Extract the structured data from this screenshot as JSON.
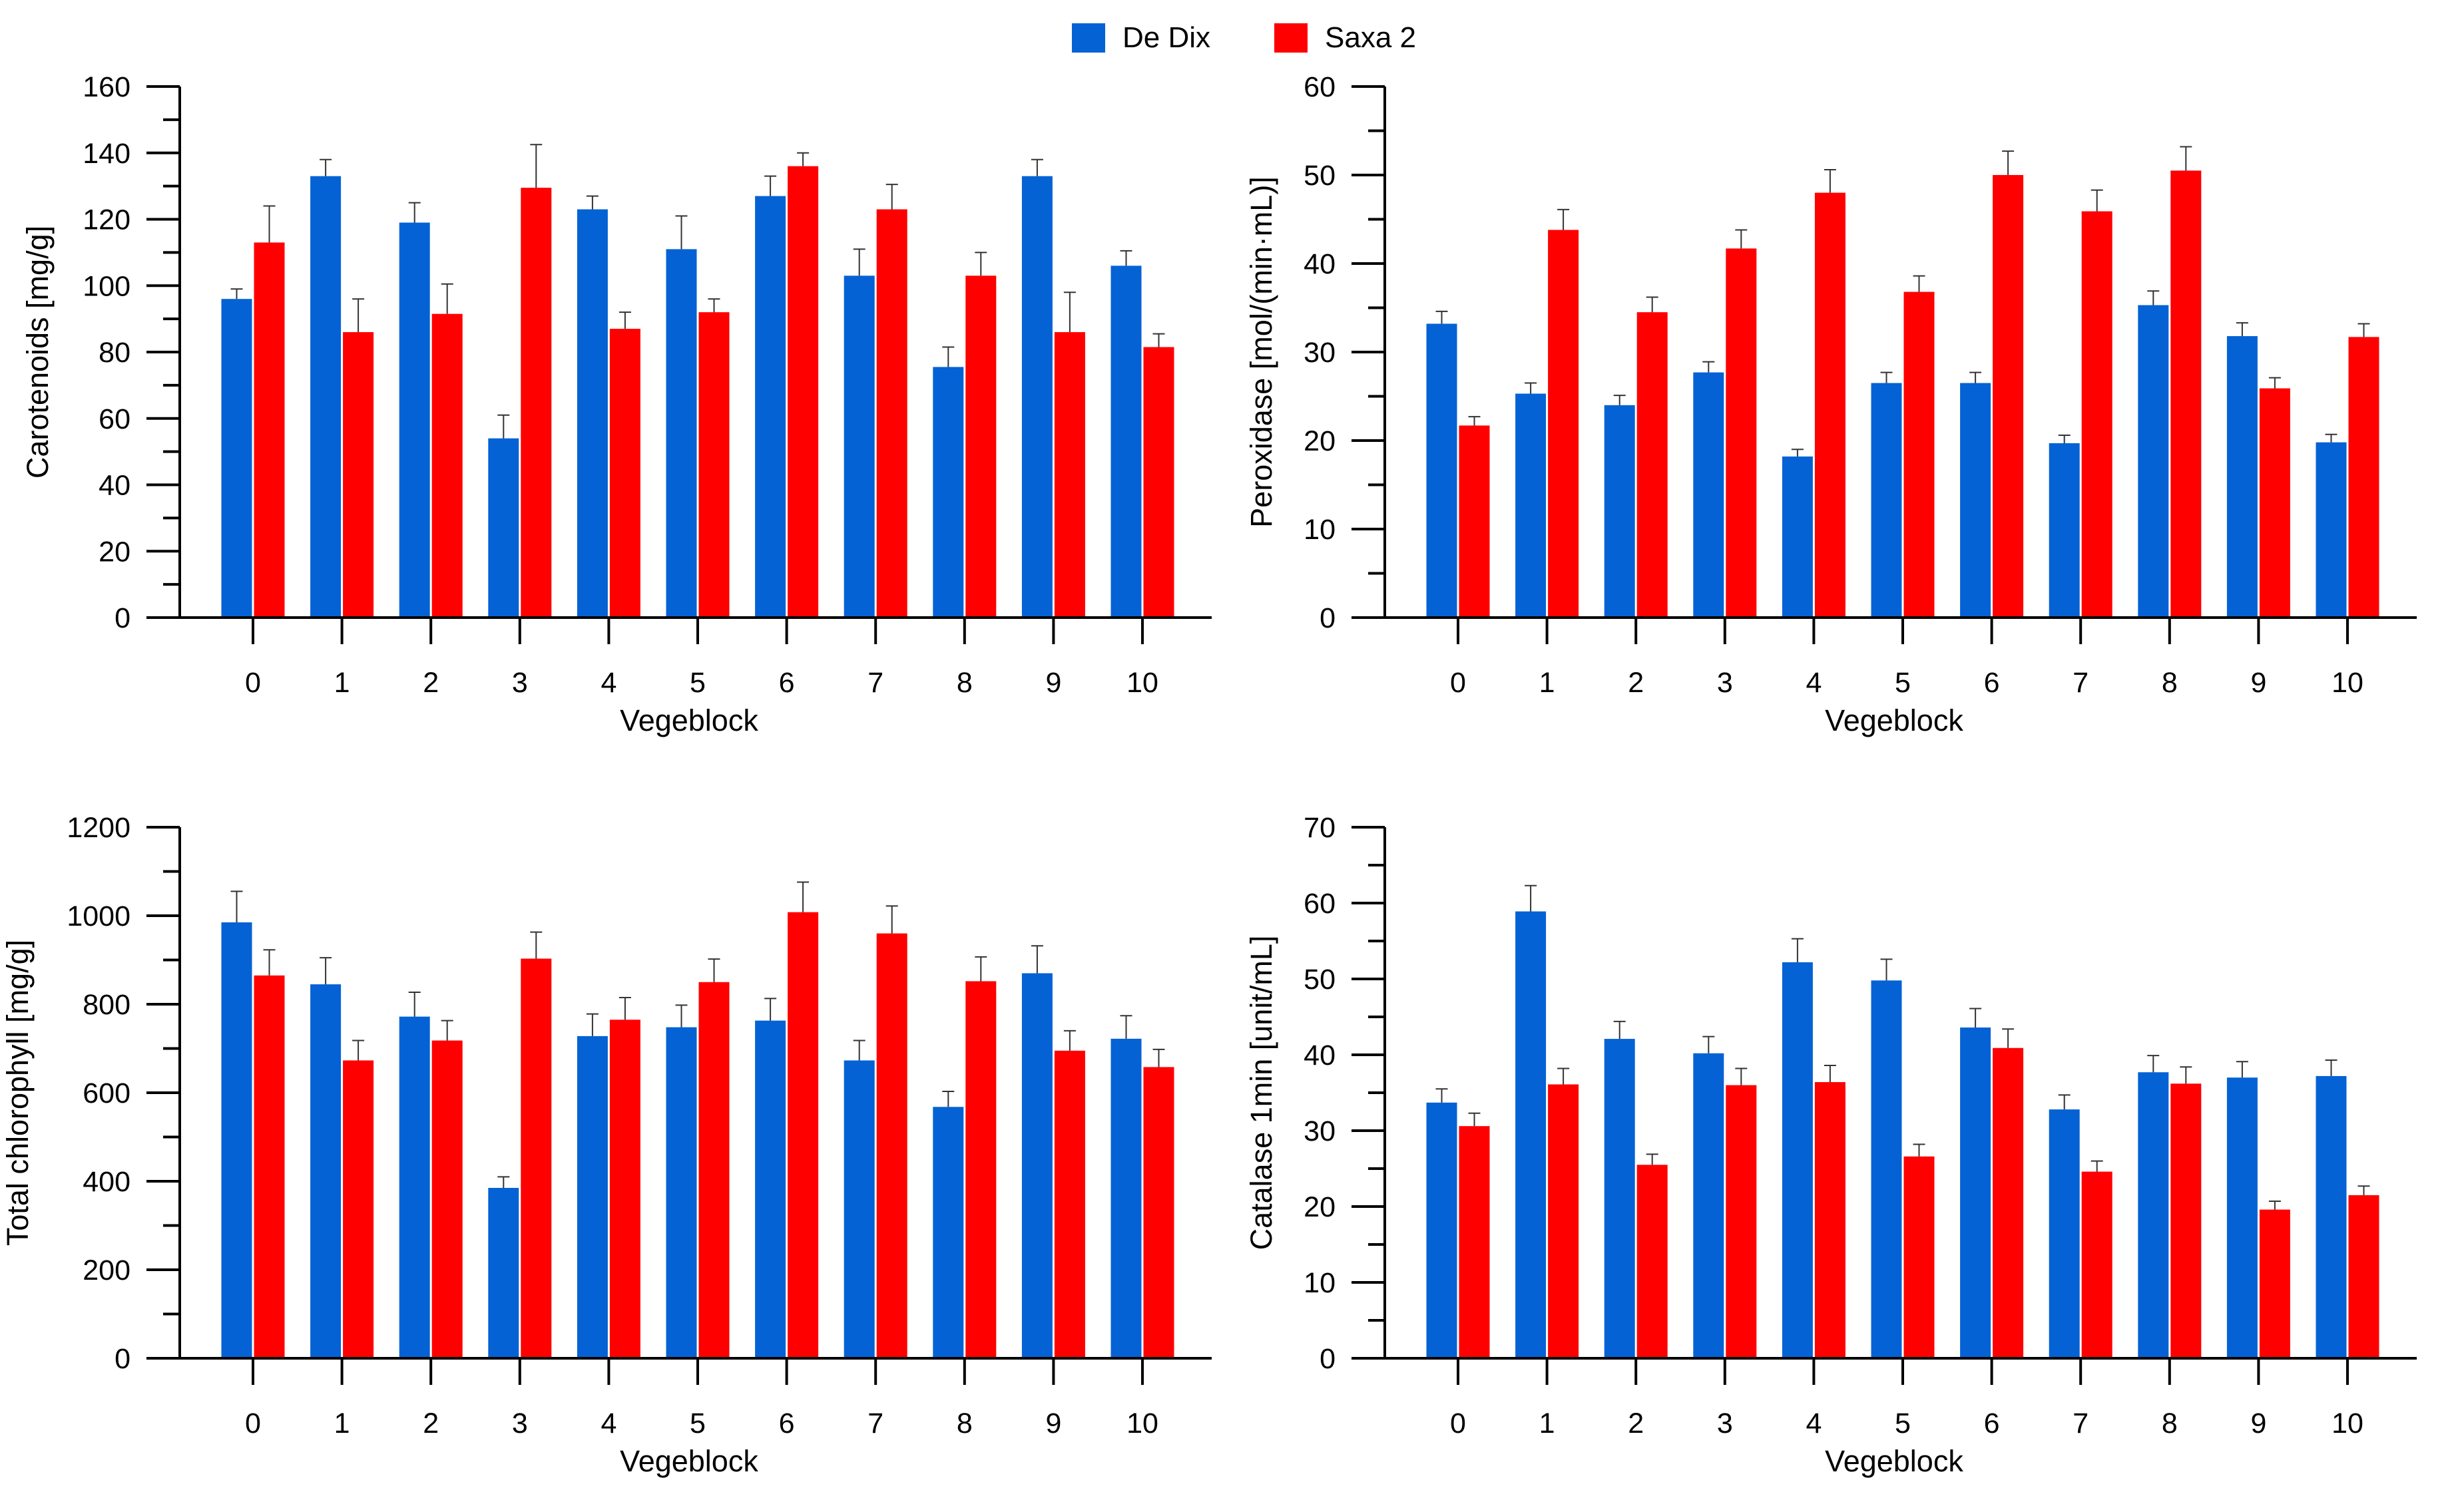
{
  "legend": [
    {
      "name": "De Dix",
      "color": "#0562D5"
    },
    {
      "name": "Saxa 2",
      "color": "#FF0000"
    }
  ],
  "chart_data": [
    {
      "type": "bar",
      "title": "",
      "xlabel": "Vegeblock",
      "ylabel": "Carotenoids [mg/g]",
      "categories": [
        "0",
        "1",
        "2",
        "3",
        "4",
        "5",
        "6",
        "7",
        "8",
        "9",
        "10"
      ],
      "ylim": [
        0,
        160
      ],
      "yticks": [
        0,
        20,
        40,
        60,
        80,
        100,
        120,
        140,
        160
      ],
      "yticklabels": [
        "0",
        "20",
        "40",
        "60",
        "80",
        "100",
        "120",
        "140",
        "160"
      ],
      "series": [
        {
          "name": "De Dix",
          "color": "#0562D5",
          "values": [
            96,
            133,
            119,
            54,
            123,
            111,
            127,
            103,
            75.5,
            133,
            106
          ],
          "errors": [
            3,
            5,
            6,
            7,
            4,
            10,
            6,
            8,
            6,
            5,
            4.5
          ]
        },
        {
          "name": "Saxa 2",
          "color": "#FF0000",
          "values": [
            113,
            86,
            91.5,
            129.5,
            87,
            92,
            136,
            123,
            103,
            86,
            81.5
          ],
          "errors": [
            11,
            10,
            9,
            13,
            5,
            4,
            4,
            7.5,
            7,
            12,
            4
          ]
        }
      ]
    },
    {
      "type": "bar",
      "title": "",
      "xlabel": "Vegeblock",
      "ylabel": "Peroxidase [mol/(min·mL)]",
      "categories": [
        "0",
        "1",
        "2",
        "3",
        "4",
        "5",
        "6",
        "7",
        "8",
        "9",
        "10"
      ],
      "ylim": [
        0,
        60
      ],
      "yticks": [
        0,
        10,
        20,
        30,
        40,
        50,
        60
      ],
      "yticklabels": [
        "0",
        "10",
        "20",
        "30",
        "40",
        "50",
        "60"
      ],
      "series": [
        {
          "name": "De Dix",
          "color": "#0562D5",
          "values": [
            33.2,
            25.3,
            24,
            27.7,
            18.2,
            26.5,
            26.5,
            19.7,
            35.3,
            31.8,
            19.8
          ],
          "errors": [
            1.4,
            1.2,
            1.1,
            1.2,
            0.8,
            1.2,
            1.2,
            0.9,
            1.6,
            1.5,
            0.9
          ]
        },
        {
          "name": "Saxa 2",
          "color": "#FF0000",
          "values": [
            21.7,
            43.8,
            34.5,
            41.7,
            48,
            36.8,
            50,
            45.9,
            50.5,
            25.9,
            31.7
          ],
          "errors": [
            1,
            2.3,
            1.7,
            2.1,
            2.6,
            1.8,
            2.7,
            2.4,
            2.7,
            1.2,
            1.5
          ]
        }
      ]
    },
    {
      "type": "bar",
      "title": "",
      "xlabel": "Vegeblock",
      "ylabel": "Total chlorophyll [mg/g]",
      "categories": [
        "0",
        "1",
        "2",
        "3",
        "4",
        "5",
        "6",
        "7",
        "8",
        "9",
        "10"
      ],
      "ylim": [
        0,
        1200
      ],
      "yticks": [
        0,
        200,
        400,
        600,
        800,
        1000,
        1200
      ],
      "yticklabels": [
        "0",
        "200",
        "400",
        "600",
        "800",
        "1000",
        "1200"
      ],
      "series": [
        {
          "name": "De Dix",
          "color": "#0562D5",
          "values": [
            985,
            845,
            772,
            385,
            728,
            748,
            763,
            673,
            568,
            870,
            722
          ],
          "errors": [
            70,
            60,
            55,
            25,
            50,
            50,
            50,
            45,
            35,
            62,
            52
          ]
        },
        {
          "name": "Saxa 2",
          "color": "#FF0000",
          "values": [
            865,
            673,
            718,
            903,
            765,
            850,
            1008,
            960,
            852,
            695,
            658
          ],
          "errors": [
            58,
            45,
            45,
            60,
            50,
            52,
            68,
            62,
            55,
            45,
            40
          ]
        }
      ]
    },
    {
      "type": "bar",
      "title": "",
      "xlabel": "Vegeblock",
      "ylabel": "Catalase 1min [unit/mL]",
      "categories": [
        "0",
        "1",
        "2",
        "3",
        "4",
        "5",
        "6",
        "7",
        "8",
        "9",
        "10"
      ],
      "ylim": [
        0,
        70
      ],
      "yticks": [
        0,
        10,
        20,
        30,
        40,
        50,
        60,
        70
      ],
      "yticklabels": [
        "0",
        "10",
        "20",
        "30",
        "40",
        "50",
        "60",
        "70"
      ],
      "series": [
        {
          "name": "De Dix",
          "color": "#0562D5",
          "values": [
            33.7,
            58.9,
            42.1,
            40.2,
            52.2,
            49.8,
            43.6,
            32.8,
            37.7,
            37,
            37.2
          ],
          "errors": [
            1.8,
            3.4,
            2.3,
            2.2,
            3.1,
            2.8,
            2.5,
            1.9,
            2.2,
            2.1,
            2.1
          ]
        },
        {
          "name": "Saxa 2",
          "color": "#FF0000",
          "values": [
            30.6,
            36.1,
            25.5,
            36,
            36.4,
            26.6,
            40.9,
            24.6,
            36.2,
            19.6,
            21.5
          ],
          "errors": [
            1.7,
            2.1,
            1.4,
            2.2,
            2.2,
            1.6,
            2.5,
            1.4,
            2.2,
            1.1,
            1.2
          ]
        }
      ]
    }
  ]
}
